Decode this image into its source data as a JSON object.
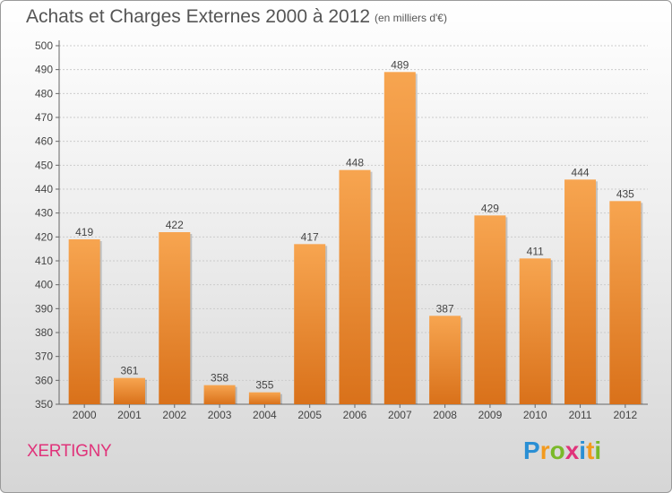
{
  "title": "Achats et Charges Externes 2000 à 2012",
  "subtitle": "(en milliers d'€)",
  "place": "XERTIGNY",
  "logo": {
    "text": "Proxiti",
    "letter_colors": [
      "#2a8fd4",
      "#f39a1e",
      "#7ab929",
      "#e0337a",
      "#2a8fd4",
      "#f39a1e",
      "#7ab929"
    ]
  },
  "colors": {
    "bar_top": "#f7a550",
    "bar_bottom": "#d9711a",
    "axis": "#666666",
    "grid": "#cccccc"
  },
  "chart_data": {
    "type": "bar",
    "categories": [
      "2000",
      "2001",
      "2002",
      "2003",
      "2004",
      "2005",
      "2006",
      "2007",
      "2008",
      "2009",
      "2010",
      "2011",
      "2012"
    ],
    "values": [
      419,
      361,
      422,
      358,
      355,
      417,
      448,
      489,
      387,
      429,
      411,
      444,
      435
    ],
    "ylim": [
      350,
      500
    ],
    "yticks": [
      350,
      360,
      370,
      380,
      390,
      400,
      410,
      420,
      430,
      440,
      450,
      460,
      470,
      480,
      490,
      500
    ],
    "grid": true
  }
}
